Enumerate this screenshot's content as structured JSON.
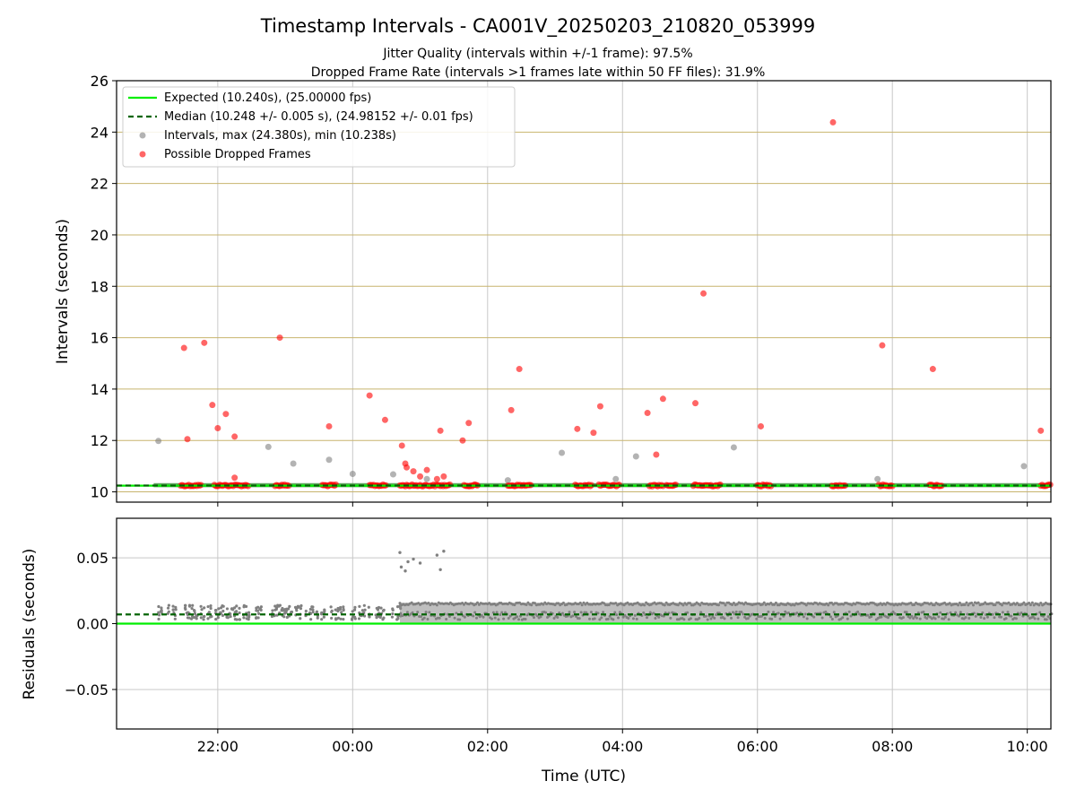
{
  "figure": {
    "title": "Timestamp Intervals - CA001V_20250203_210820_053999",
    "subtitle_1": "Jitter Quality (intervals within +/-1 frame): 97.5%",
    "subtitle_2": "Dropped Frame Rate (intervals >1 frames late within 50 FF files): 31.9%"
  },
  "colors": {
    "expected": "#00ee00",
    "median": "#006400",
    "intervals": "#808080",
    "dropped": "#ff0000",
    "hgrid_top": "#c8b46e",
    "grid": "#c8c8c8"
  },
  "chart_data": [
    {
      "type": "scatter",
      "ylabel": "Intervals (seconds)",
      "xlabel": "",
      "x_unit": "hours (UTC, continuing past midnight)",
      "xlim": [
        20.5,
        34.35
      ],
      "ylim": [
        9.6,
        26
      ],
      "yticks": [
        10,
        12,
        14,
        16,
        18,
        20,
        22,
        24,
        26
      ],
      "grid": "horizontal",
      "legend_position": "upper-left",
      "legend": [
        "Expected (10.240s), (25.00000 fps)",
        "Median (10.248 +/- 0.005 s), (24.98152 +/- 0.01 fps)",
        "Intervals, max (24.380s), min (10.238s)",
        "Possible Dropped Frames"
      ],
      "expected_line": 10.24,
      "median_line": 10.248,
      "series": [
        {
          "name": "Intervals, max (24.380s), min (10.238s)",
          "points": [
            [
              21.12,
              11.98
            ],
            [
              22.75,
              11.75
            ],
            [
              23.12,
              11.1
            ],
            [
              23.65,
              11.25
            ],
            [
              24.0,
              10.7
            ],
            [
              24.6,
              10.68
            ],
            [
              25.1,
              10.5
            ],
            [
              26.3,
              10.45
            ],
            [
              27.1,
              11.52
            ],
            [
              27.9,
              10.5
            ],
            [
              28.2,
              11.38
            ],
            [
              29.65,
              11.73
            ],
            [
              31.78,
              10.5
            ],
            [
              33.95,
              11.0
            ]
          ]
        },
        {
          "name": "Possible Dropped Frames",
          "points": [
            [
              21.5,
              15.6
            ],
            [
              21.8,
              15.8
            ],
            [
              21.55,
              12.05
            ],
            [
              21.92,
              13.38
            ],
            [
              22.0,
              12.48
            ],
            [
              22.12,
              13.03
            ],
            [
              22.25,
              12.15
            ],
            [
              22.25,
              10.55
            ],
            [
              22.92,
              16.0
            ],
            [
              23.65,
              12.55
            ],
            [
              24.25,
              13.75
            ],
            [
              24.48,
              12.8
            ],
            [
              24.73,
              11.8
            ],
            [
              24.78,
              11.1
            ],
            [
              24.8,
              10.95
            ],
            [
              24.9,
              10.8
            ],
            [
              25.0,
              10.6
            ],
            [
              25.1,
              10.85
            ],
            [
              25.25,
              10.5
            ],
            [
              25.3,
              12.38
            ],
            [
              25.35,
              10.6
            ],
            [
              25.63,
              12.0
            ],
            [
              25.72,
              12.68
            ],
            [
              26.35,
              13.18
            ],
            [
              26.47,
              14.78
            ],
            [
              27.33,
              12.45
            ],
            [
              27.57,
              12.3
            ],
            [
              27.67,
              13.33
            ],
            [
              28.37,
              13.07
            ],
            [
              28.5,
              11.45
            ],
            [
              28.6,
              13.62
            ],
            [
              29.08,
              13.45
            ],
            [
              29.2,
              17.72
            ],
            [
              30.05,
              12.55
            ],
            [
              31.12,
              24.38
            ],
            [
              31.85,
              15.7
            ],
            [
              32.6,
              14.78
            ],
            [
              34.2,
              12.38
            ]
          ]
        }
      ],
      "band": {
        "name": "Intervals near expected",
        "x_range": [
          21.05,
          34.35
        ],
        "y_range": [
          10.18,
          10.34
        ]
      },
      "dropped_clusters": [
        [
          21.45,
          21.75
        ],
        [
          21.95,
          22.45
        ],
        [
          22.85,
          23.05
        ],
        [
          23.55,
          23.75
        ],
        [
          24.25,
          24.5
        ],
        [
          24.7,
          25.45
        ],
        [
          25.65,
          25.85
        ],
        [
          26.3,
          26.65
        ],
        [
          27.3,
          27.55
        ],
        [
          27.65,
          27.95
        ],
        [
          28.4,
          28.6
        ],
        [
          28.65,
          28.8
        ],
        [
          29.05,
          29.45
        ],
        [
          30.0,
          30.2
        ],
        [
          31.1,
          31.3
        ],
        [
          31.8,
          32.0
        ],
        [
          32.55,
          32.75
        ],
        [
          34.2,
          34.35
        ]
      ]
    },
    {
      "type": "scatter",
      "ylabel": "Residuals (seconds)",
      "xlabel": "Time (UTC)",
      "xlim": [
        20.5,
        34.35
      ],
      "ylim": [
        -0.08,
        0.08
      ],
      "yticks": [
        -0.05,
        0.0,
        0.05
      ],
      "ytick_labels": [
        "−0.05",
        "0.00",
        "0.05"
      ],
      "xticks": [
        22,
        24,
        26,
        28,
        30,
        32,
        34
      ],
      "xtick_labels": [
        "22:00",
        "00:00",
        "02:00",
        "04:00",
        "06:00",
        "08:00",
        "10:00"
      ],
      "grid": "both",
      "expected_line": 0.0,
      "median_line": 0.007,
      "outliers": [
        [
          24.7,
          0.054
        ],
        [
          24.72,
          0.043
        ],
        [
          24.78,
          0.04
        ],
        [
          24.82,
          0.047
        ],
        [
          24.9,
          0.049
        ],
        [
          25.0,
          0.046
        ],
        [
          25.25,
          0.052
        ],
        [
          25.3,
          0.041
        ],
        [
          25.35,
          0.055
        ]
      ],
      "early_band": {
        "x_range": [
          21.05,
          24.7
        ],
        "y_range": [
          0.0,
          0.015
        ]
      },
      "late_band": {
        "x_range": [
          24.7,
          34.35
        ],
        "y_range": [
          0.0,
          0.016
        ]
      }
    }
  ]
}
